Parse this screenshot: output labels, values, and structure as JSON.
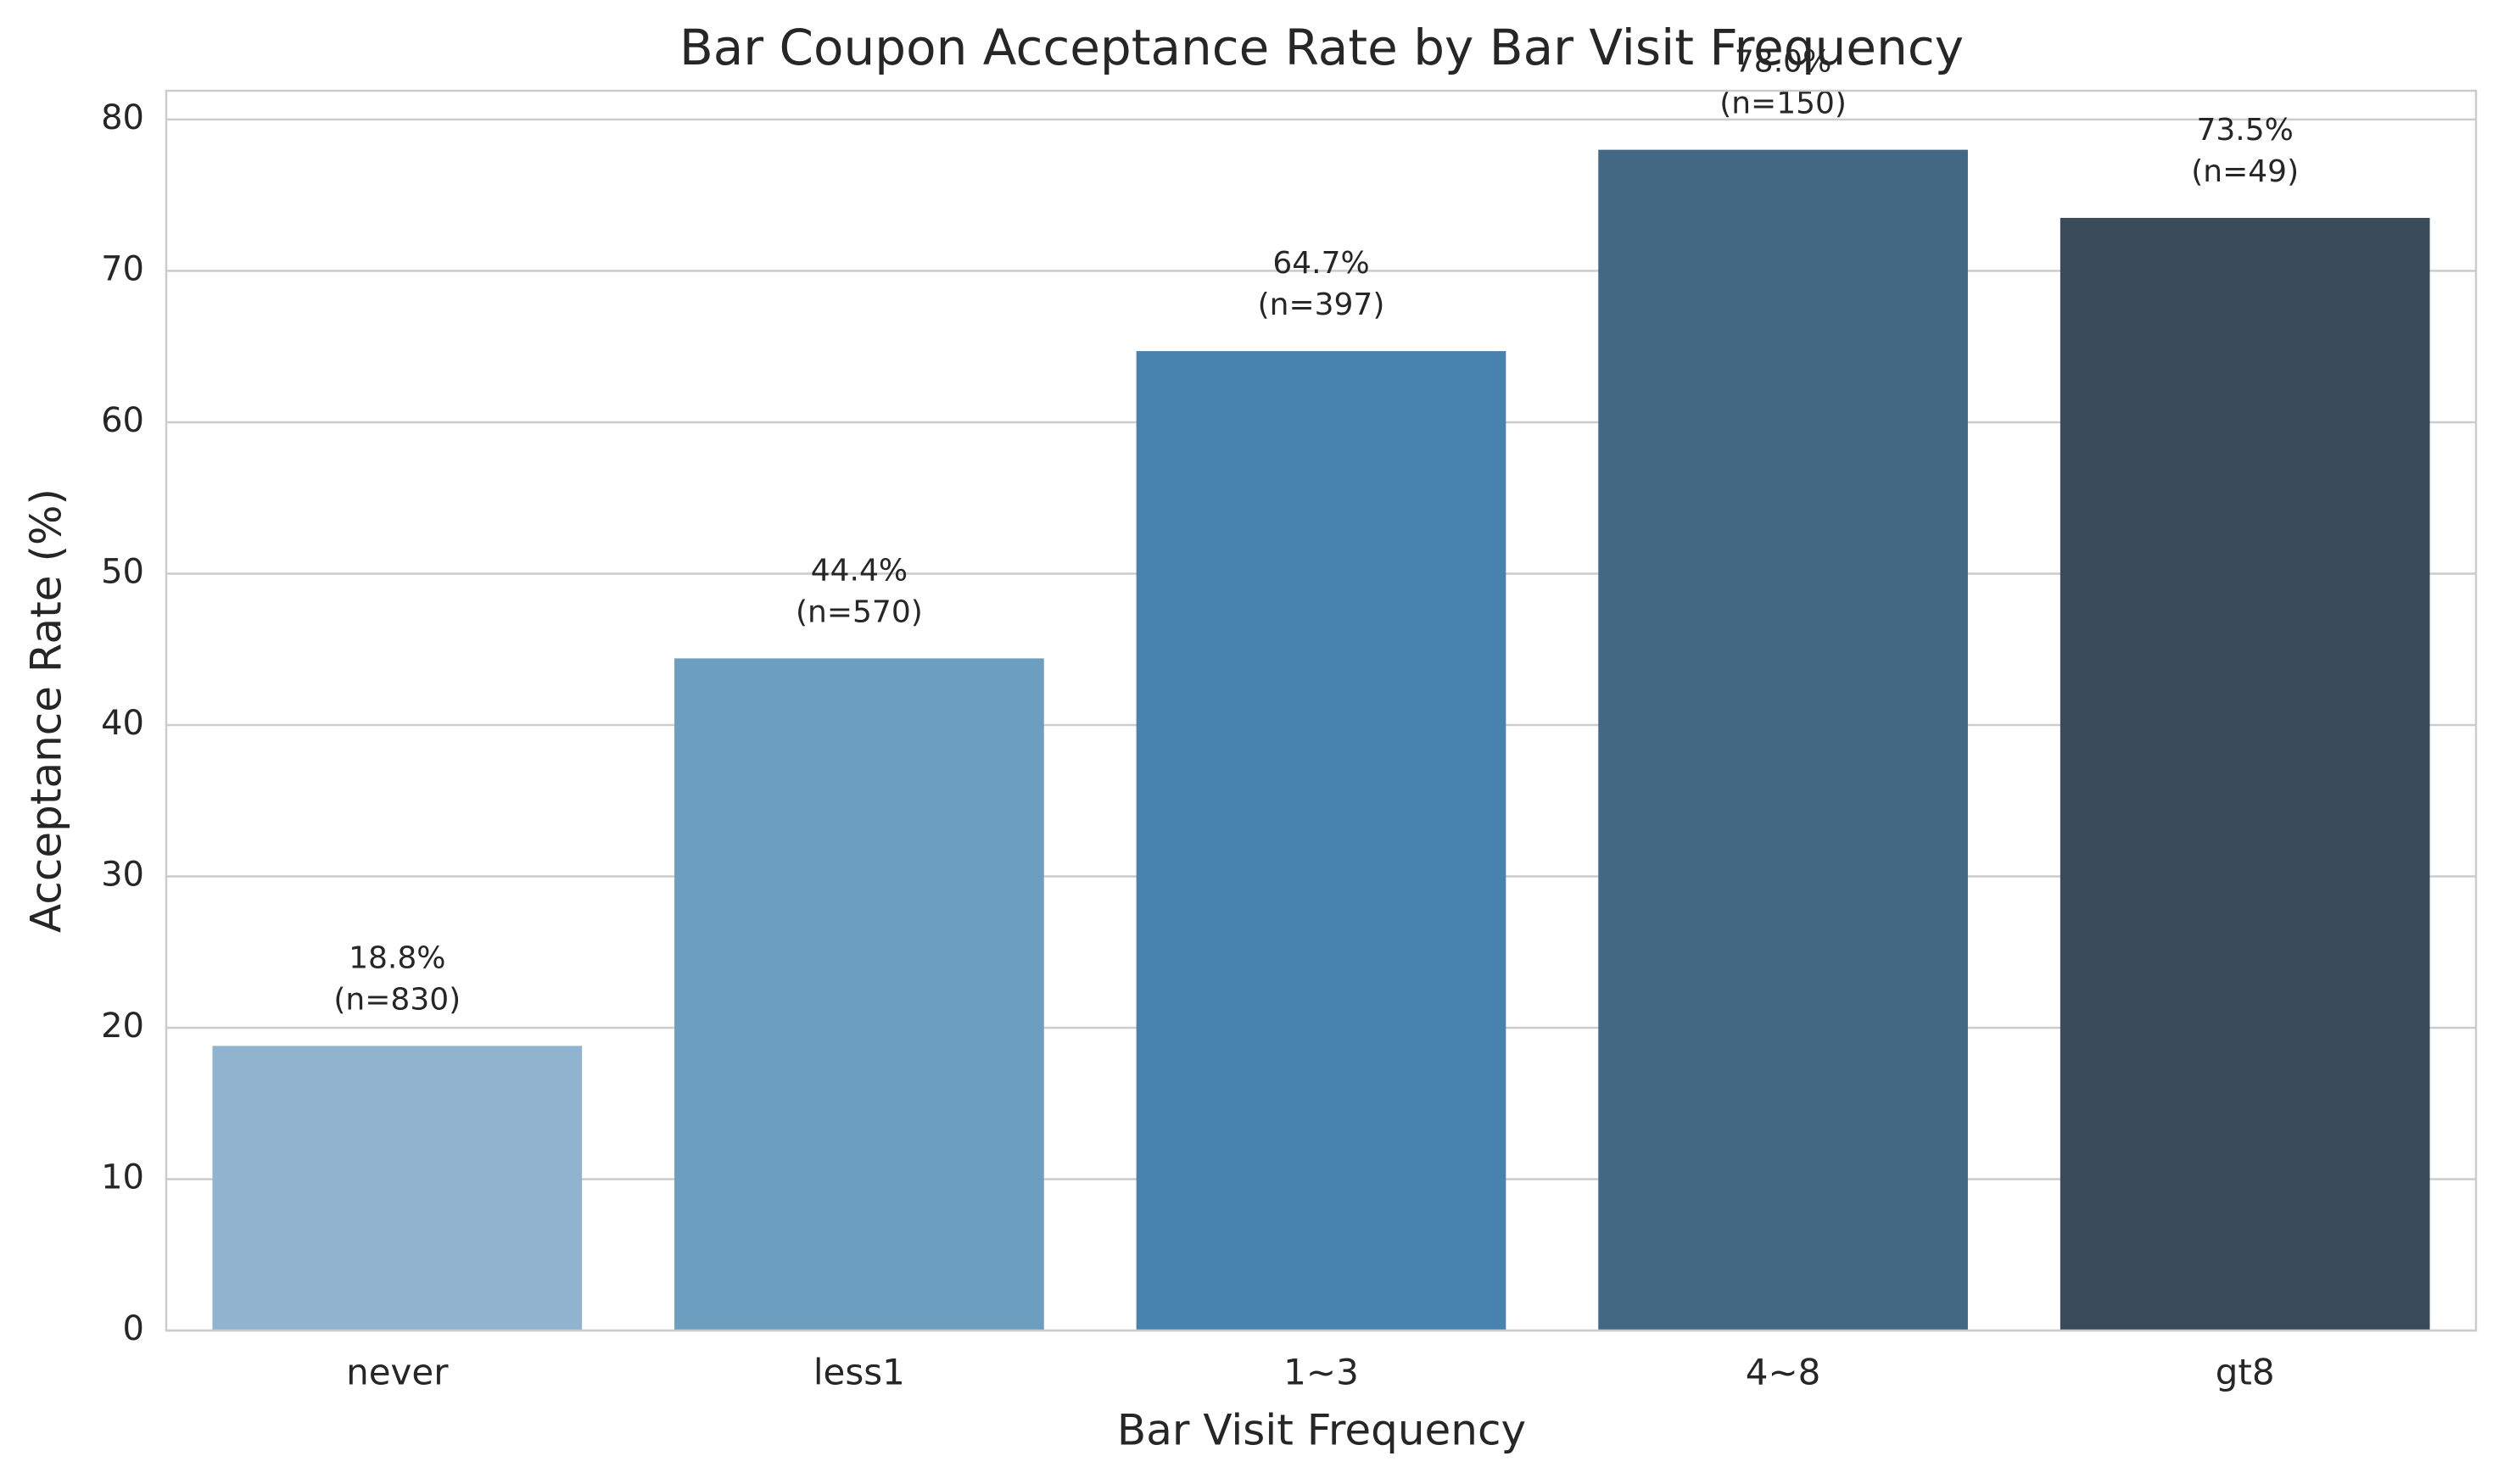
{
  "chart_data": {
    "type": "bar",
    "title": "Bar Coupon Acceptance Rate by Bar Visit Frequency",
    "x_label": "Bar Visit Frequency",
    "y_label": "Acceptance Rate (%)",
    "categories": [
      "never",
      "less1",
      "1~3",
      "4~8",
      "gt8"
    ],
    "values": [
      18.8,
      44.4,
      64.7,
      78.0,
      73.5
    ],
    "value_labels": [
      "18.8%",
      "44.4%",
      "64.7%",
      "78.0%",
      "73.5%"
    ],
    "sample_size_labels": [
      "(n=830)",
      "(n=570)",
      "(n=397)",
      "(n=150)",
      "(n=49)"
    ],
    "colors": [
      "#90b4cf",
      "#6c9ec0",
      "#4883b0",
      "#426884",
      "#3a4c5a"
    ],
    "ylim": [
      0,
      81.9
    ],
    "yticks": [
      0,
      10,
      20,
      30,
      40,
      50,
      60,
      70,
      80
    ],
    "grid": true
  }
}
